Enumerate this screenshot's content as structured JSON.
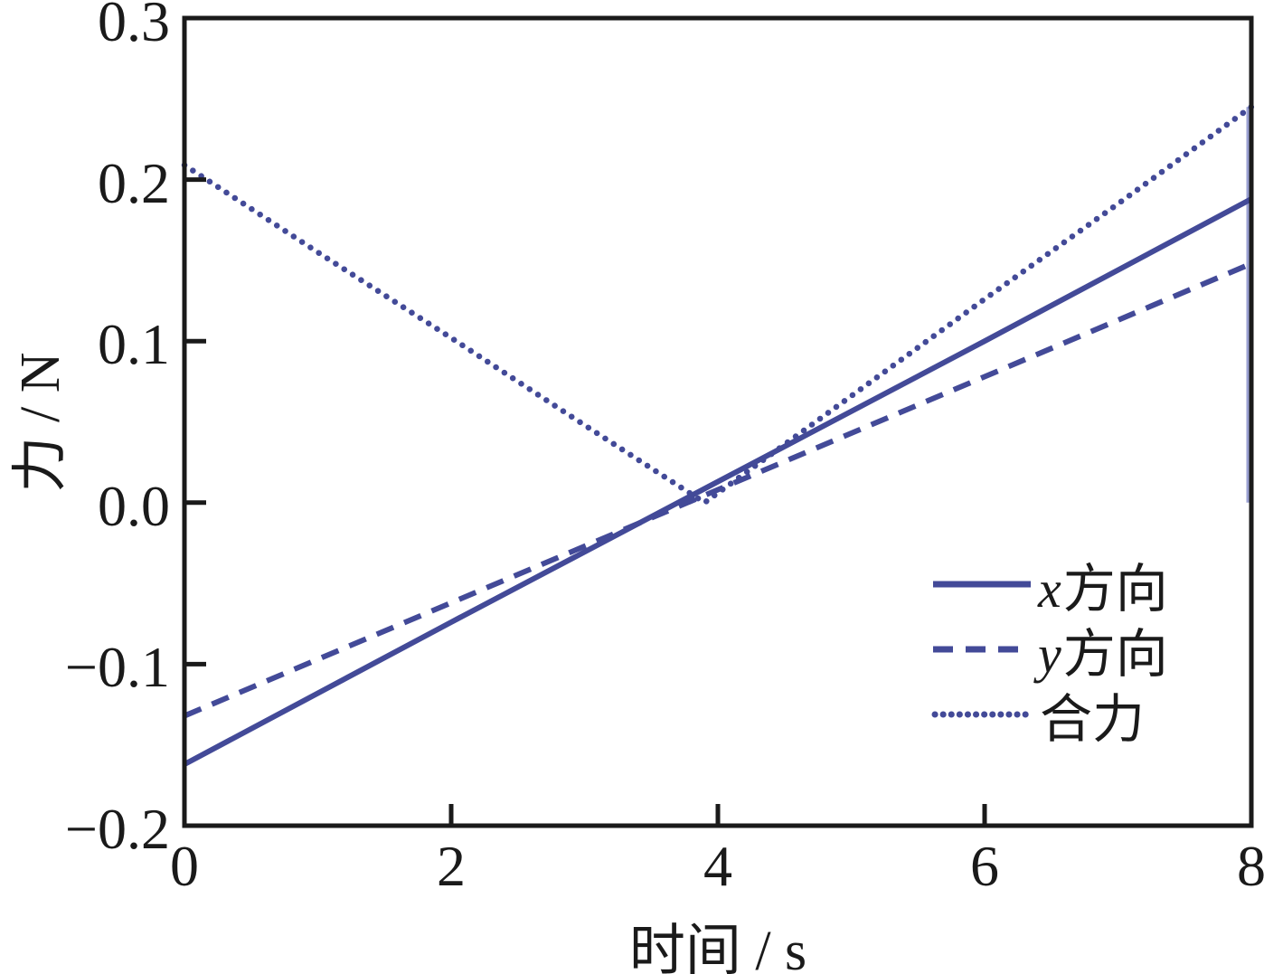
{
  "figure": {
    "background": "#ffffff",
    "line_color": "#434a98",
    "axis_color": "#1a1a1a",
    "edge_line_color": "#9aa0d2"
  },
  "chart_data": {
    "type": "line",
    "title": "",
    "xlabel": "时间 / s",
    "ylabel": "力 / N",
    "xlim": [
      0,
      8
    ],
    "ylim": [
      -0.2,
      0.3
    ],
    "grid": false,
    "legend_position": "inside-lower-right",
    "x_ticks": [
      {
        "value": 0,
        "label": "0"
      },
      {
        "value": 2,
        "label": "2"
      },
      {
        "value": 4,
        "label": "4"
      },
      {
        "value": 6,
        "label": "6"
      },
      {
        "value": 8,
        "label": "8"
      }
    ],
    "y_ticks": [
      {
        "value": 0.3,
        "label": "0.3"
      },
      {
        "value": 0.2,
        "label": "0.2"
      },
      {
        "value": 0.1,
        "label": "0.1"
      },
      {
        "value": 0.0,
        "label": "0.0"
      },
      {
        "value": -0.1,
        "label": "−0.1"
      },
      {
        "value": -0.2,
        "label": "−0.2"
      }
    ],
    "series": [
      {
        "id": "x-direction",
        "name": "x方向",
        "name_math": "x",
        "name_text": "方向",
        "style": "solid",
        "points": [
          [
            0,
            -0.162
          ],
          [
            2,
            -0.074
          ],
          [
            4,
            0.013
          ],
          [
            6,
            0.1
          ],
          [
            8,
            0.188
          ]
        ]
      },
      {
        "id": "y-direction",
        "name": "y方向",
        "name_math": "y",
        "name_text": "方向",
        "style": "dashed",
        "points": [
          [
            0,
            -0.132
          ],
          [
            2,
            -0.062
          ],
          [
            4,
            0.008
          ],
          [
            6,
            0.078
          ],
          [
            8,
            0.148
          ]
        ]
      },
      {
        "id": "resultant",
        "name": "合力",
        "name_math": "",
        "name_text": "合力",
        "style": "dotted",
        "points": [
          [
            0,
            0.209
          ],
          [
            1,
            0.155
          ],
          [
            2,
            0.102
          ],
          [
            3,
            0.048
          ],
          [
            3.9,
            0.0
          ],
          [
            5,
            0.066
          ],
          [
            6,
            0.126
          ],
          [
            7,
            0.185
          ],
          [
            8,
            0.245
          ]
        ]
      }
    ],
    "right_edge_segment": {
      "x": 8,
      "y_from": 0.0,
      "y_to": 0.245
    }
  }
}
